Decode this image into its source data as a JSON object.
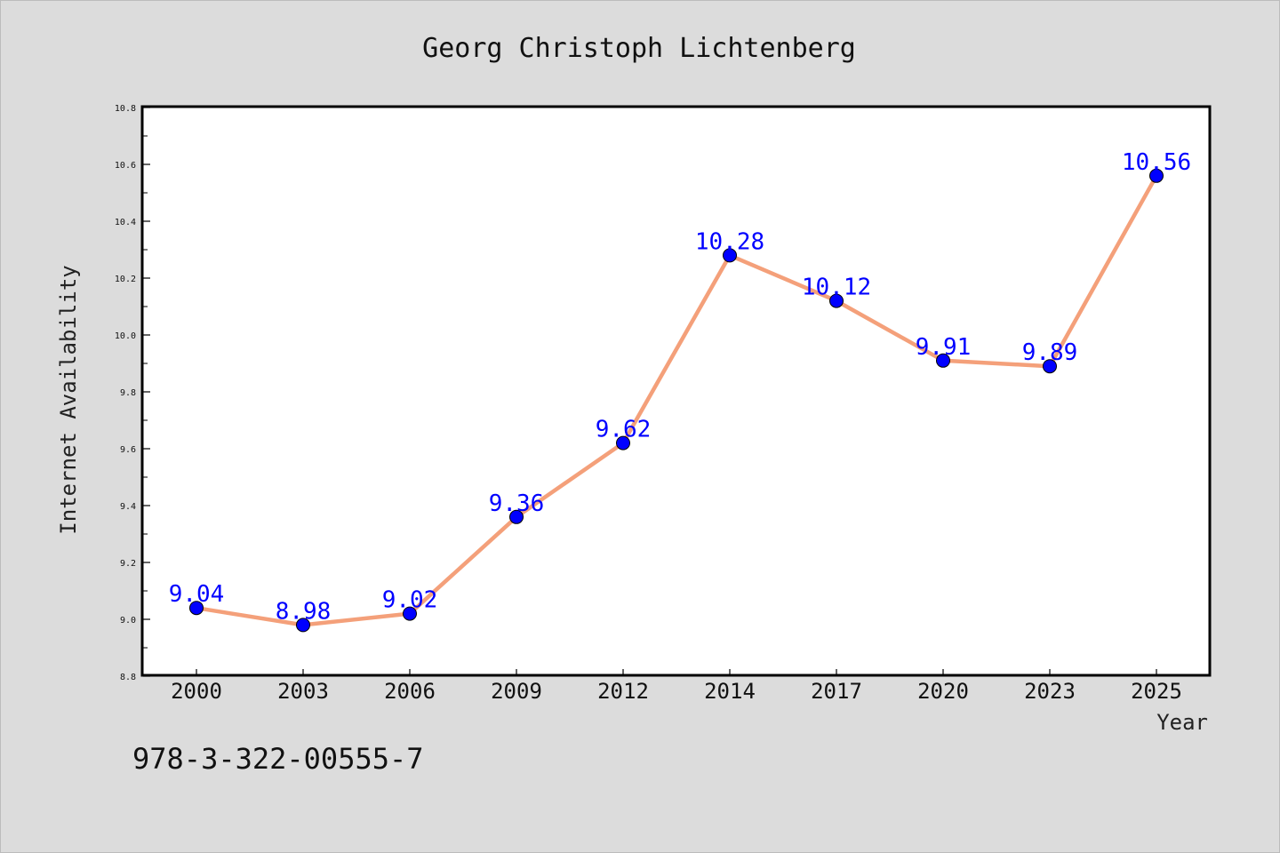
{
  "chart_data": {
    "type": "line",
    "title": "Georg Christoph Lichtenberg",
    "xlabel": "Year",
    "ylabel": "Internet Availability",
    "categories": [
      "2000",
      "2003",
      "2006",
      "2009",
      "2012",
      "2014",
      "2017",
      "2020",
      "2023",
      "2025"
    ],
    "series": [
      {
        "values": [
          9.04,
          8.98,
          9.02,
          9.36,
          9.62,
          10.28,
          10.12,
          9.91,
          9.89,
          10.56
        ],
        "data_labels": [
          "9.04",
          "8.98",
          "9.02",
          "9.36",
          "9.62",
          "10.28",
          "10.12",
          "9.91",
          "9.89",
          "10.56"
        ],
        "line_color": "#f4a07a",
        "marker_color": "#0000ff"
      }
    ],
    "ylim": [
      8.8,
      10.8
    ],
    "yticks": [
      "8.8",
      "9.0",
      "9.2",
      "9.4",
      "9.6",
      "9.8",
      "10.0",
      "10.2",
      "10.4",
      "10.6",
      "10.8"
    ],
    "grid": false,
    "legend": "none"
  },
  "caption": "978-3-322-00555-7",
  "colors": {
    "background": "#dcdcdc",
    "plot_background": "#ffffff",
    "line": "#f4a07a",
    "marker": "#0000ff",
    "data_label": "#0000ff"
  }
}
